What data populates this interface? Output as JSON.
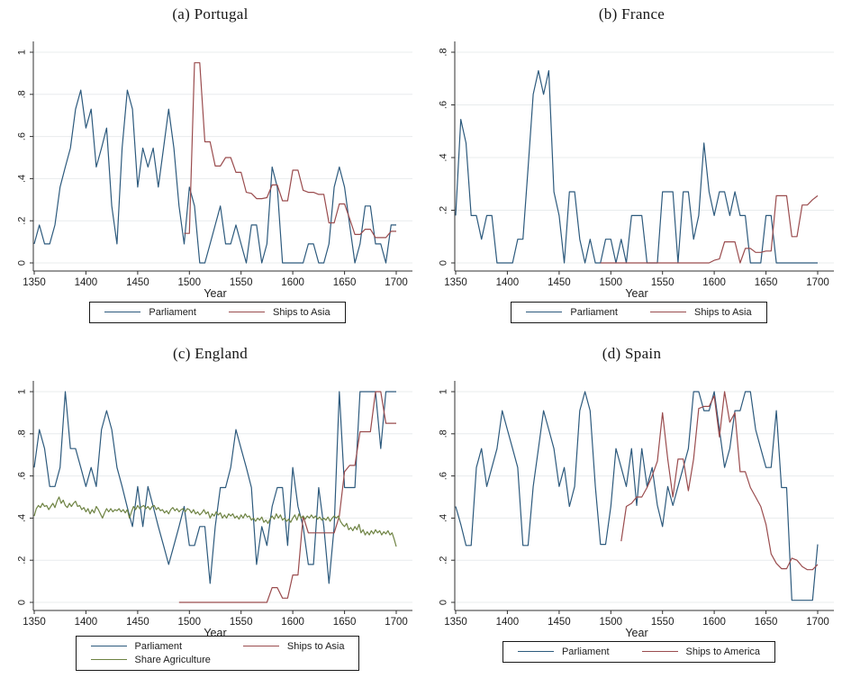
{
  "figure": {
    "background": "#ffffff",
    "panel_count": 4
  },
  "colors": {
    "parliament": "#2d5a7d",
    "ships": "#9a4c4e",
    "agriculture": "#6e8343",
    "grid": "#e8eced",
    "axis": "#303030",
    "text": "#1c1c1c",
    "legend_border": "#181818"
  },
  "chart_data": [
    {
      "type": "line",
      "id": "portugal",
      "title": "(a) Portugal",
      "xlabel": "Year",
      "xlim": [
        1350,
        1700
      ],
      "ylim": [
        0,
        1
      ],
      "x_ticks": [
        1350,
        1400,
        1450,
        1500,
        1550,
        1600,
        1650,
        1700
      ],
      "y_tick_values": [
        0,
        0.2,
        0.4,
        0.6,
        0.8,
        1
      ],
      "y_tick_labels": [
        "0",
        ".2",
        ".4",
        ".6",
        ".8",
        "1"
      ],
      "grid": "horizontal",
      "legend_position": "bottom",
      "series": [
        {
          "name": "Parliament",
          "color": "parliament",
          "x0": 1350,
          "dx": 5,
          "values": [
            0.09,
            0.18,
            0.09,
            0.09,
            0.18,
            0.36,
            0.455,
            0.545,
            0.73,
            0.82,
            0.64,
            0.73,
            0.455,
            0.545,
            0.64,
            0.27,
            0.09,
            0.545,
            0.82,
            0.73,
            0.36,
            0.545,
            0.455,
            0.545,
            0.36,
            0.545,
            0.73,
            0.545,
            0.27,
            0.09,
            0.36,
            0.27,
            0,
            0,
            0.09,
            0.18,
            0.27,
            0.09,
            0.09,
            0.18,
            0.09,
            0,
            0.18,
            0.18,
            0,
            0.09,
            0.455,
            0.36,
            0,
            0,
            0,
            0,
            0,
            0.09,
            0.09,
            0,
            0,
            0.09,
            0.36,
            0.455,
            0.36,
            0.18,
            0,
            0.09,
            0.27,
            0.27,
            0.09,
            0.09,
            0,
            0.18,
            0.18
          ]
        },
        {
          "name": "Ships to Asia",
          "color": "ships",
          "x0": 1495,
          "dx": 5,
          "values": [
            0.14,
            0.14,
            0.95,
            0.95,
            0.575,
            0.575,
            0.46,
            0.46,
            0.5,
            0.5,
            0.43,
            0.43,
            0.335,
            0.33,
            0.305,
            0.305,
            0.31,
            0.37,
            0.37,
            0.295,
            0.295,
            0.44,
            0.44,
            0.345,
            0.335,
            0.335,
            0.325,
            0.325,
            0.19,
            0.19,
            0.28,
            0.28,
            0.21,
            0.135,
            0.135,
            0.16,
            0.16,
            0.12,
            0.12,
            0.12,
            0.15,
            0.15
          ]
        }
      ]
    },
    {
      "type": "line",
      "id": "france",
      "title": "(b) France",
      "xlabel": "Year",
      "xlim": [
        1350,
        1700
      ],
      "ylim": [
        0,
        0.8
      ],
      "x_ticks": [
        1350,
        1400,
        1450,
        1500,
        1550,
        1600,
        1650,
        1700
      ],
      "y_tick_values": [
        0,
        0.2,
        0.4,
        0.6,
        0.8
      ],
      "y_tick_labels": [
        "0",
        ".2",
        ".4",
        ".6",
        ".8"
      ],
      "grid": "horizontal",
      "legend_position": "bottom",
      "series": [
        {
          "name": "Parliament",
          "color": "parliament",
          "x0": 1350,
          "dx": 5,
          "values": [
            0.18,
            0.545,
            0.455,
            0.18,
            0.18,
            0.09,
            0.18,
            0.18,
            0,
            0,
            0,
            0,
            0.09,
            0.09,
            0.36,
            0.64,
            0.73,
            0.64,
            0.73,
            0.27,
            0.18,
            0,
            0.27,
            0.27,
            0.09,
            0,
            0.09,
            0,
            0,
            0.09,
            0.09,
            0,
            0.09,
            0,
            0.18,
            0.18,
            0.18,
            0,
            0,
            0,
            0.27,
            0.27,
            0.27,
            0,
            0.27,
            0.27,
            0.09,
            0.18,
            0.455,
            0.27,
            0.18,
            0.27,
            0.27,
            0.18,
            0.27,
            0.18,
            0.18,
            0,
            0,
            0,
            0.18,
            0.18,
            0,
            0,
            0,
            0,
            0,
            0,
            0,
            0,
            0
          ]
        },
        {
          "name": "Ships to Asia",
          "color": "ships",
          "x0": 1490,
          "dx": 5,
          "values": [
            0,
            0,
            0,
            0,
            0,
            0,
            0,
            0,
            0,
            0,
            0,
            0,
            0,
            0,
            0,
            0,
            0,
            0,
            0,
            0,
            0,
            0,
            0.01,
            0.015,
            0.08,
            0.08,
            0.08,
            0,
            0.055,
            0.055,
            0.04,
            0.04,
            0.045,
            0.045,
            0.255,
            0.255,
            0.255,
            0.1,
            0.1,
            0.22,
            0.22,
            0.24,
            0.255
          ]
        }
      ]
    },
    {
      "type": "line",
      "id": "england",
      "title": "(c) England",
      "xlabel": "Year",
      "xlim": [
        1350,
        1700
      ],
      "ylim": [
        0,
        1
      ],
      "x_ticks": [
        1350,
        1400,
        1450,
        1500,
        1550,
        1600,
        1650,
        1700
      ],
      "y_tick_values": [
        0,
        0.2,
        0.4,
        0.6,
        0.8,
        1
      ],
      "y_tick_labels": [
        "0",
        ".2",
        ".4",
        ".6",
        ".8",
        "1"
      ],
      "grid": "horizontal",
      "legend_position": "bottom",
      "series": [
        {
          "name": "Parliament",
          "color": "parliament",
          "x0": 1350,
          "dx": 5,
          "values": [
            0.64,
            0.82,
            0.73,
            0.55,
            0.55,
            0.64,
            1,
            0.73,
            0.73,
            0.64,
            0.55,
            0.64,
            0.55,
            0.82,
            0.91,
            0.82,
            0.64,
            0.55,
            0.45,
            0.36,
            0.55,
            0.36,
            0.55,
            0.455,
            0.36,
            0.27,
            0.18,
            0.27,
            0.36,
            0.455,
            0.27,
            0.27,
            0.36,
            0.36,
            0.09,
            0.36,
            0.545,
            0.545,
            0.64,
            0.82,
            0.73,
            0.64,
            0.545,
            0.18,
            0.36,
            0.27,
            0.455,
            0.545,
            0.545,
            0.27,
            0.64,
            0.455,
            0.36,
            0.18,
            0.18,
            0.545,
            0.36,
            0.09,
            0.36,
            1,
            0.545,
            0.545,
            0.545,
            1,
            1,
            1,
            1,
            0.73,
            1,
            1,
            1
          ]
        },
        {
          "name": "Ships to Asia",
          "color": "ships",
          "x0": 1490,
          "dx": 5,
          "values": [
            0,
            0,
            0,
            0,
            0,
            0,
            0,
            0,
            0,
            0,
            0,
            0,
            0,
            0,
            0,
            0,
            0,
            0,
            0.07,
            0.07,
            0.02,
            0.02,
            0.13,
            0.13,
            0.41,
            0.33,
            0.33,
            0.33,
            0.33,
            0.33,
            0.33,
            0.41,
            0.62,
            0.65,
            0.65,
            0.81,
            0.81,
            0.81,
            1,
            1,
            0.85,
            0.85,
            0.85
          ]
        },
        {
          "name": "Share Agriculture",
          "color": "agriculture",
          "x0": 1350,
          "dx": 2,
          "values": [
            0.41,
            0.445,
            0.46,
            0.45,
            0.47,
            0.455,
            0.46,
            0.44,
            0.455,
            0.47,
            0.45,
            0.48,
            0.5,
            0.47,
            0.485,
            0.46,
            0.45,
            0.47,
            0.455,
            0.47,
            0.48,
            0.455,
            0.46,
            0.44,
            0.45,
            0.43,
            0.445,
            0.42,
            0.44,
            0.425,
            0.455,
            0.44,
            0.42,
            0.4,
            0.425,
            0.445,
            0.43,
            0.445,
            0.43,
            0.44,
            0.435,
            0.445,
            0.43,
            0.44,
            0.425,
            0.44,
            0.4,
            0.43,
            0.455,
            0.44,
            0.46,
            0.445,
            0.455,
            0.46,
            0.445,
            0.455,
            0.44,
            0.455,
            0.46,
            0.44,
            0.45,
            0.435,
            0.44,
            0.425,
            0.435,
            0.42,
            0.44,
            0.45,
            0.435,
            0.445,
            0.43,
            0.44,
            0.445,
            0.43,
            0.445,
            0.44,
            0.425,
            0.44,
            0.42,
            0.43,
            0.415,
            0.425,
            0.44,
            0.42,
            0.43,
            0.4,
            0.42,
            0.41,
            0.43,
            0.415,
            0.425,
            0.4,
            0.415,
            0.4,
            0.42,
            0.41,
            0.42,
            0.4,
            0.41,
            0.395,
            0.415,
            0.4,
            0.42,
            0.405,
            0.41,
            0.39,
            0.4,
            0.385,
            0.4,
            0.39,
            0.405,
            0.38,
            0.39,
            0.375,
            0.395,
            0.41,
            0.395,
            0.42,
            0.4,
            0.415,
            0.39,
            0.4,
            0.385,
            0.395,
            0.38,
            0.4,
            0.415,
            0.39,
            0.42,
            0.4,
            0.41,
            0.395,
            0.41,
            0.4,
            0.415,
            0.4,
            0.41,
            0.395,
            0.405,
            0.39,
            0.4,
            0.39,
            0.405,
            0.385,
            0.4,
            0.41,
            0.4,
            0.41,
            0.385,
            0.37,
            0.36,
            0.375,
            0.345,
            0.355,
            0.34,
            0.36,
            0.345,
            0.37,
            0.33,
            0.345,
            0.32,
            0.335,
            0.32,
            0.34,
            0.325,
            0.345,
            0.33,
            0.34,
            0.32,
            0.335,
            0.325,
            0.34,
            0.32,
            0.33,
            0.3,
            0.265
          ]
        }
      ]
    },
    {
      "type": "line",
      "id": "spain",
      "title": "(d) Spain",
      "xlabel": "Year",
      "xlim": [
        1350,
        1700
      ],
      "ylim": [
        0,
        1
      ],
      "x_ticks": [
        1350,
        1400,
        1450,
        1500,
        1550,
        1600,
        1650,
        1700
      ],
      "y_tick_values": [
        0,
        0.2,
        0.4,
        0.6,
        0.8,
        1
      ],
      "y_tick_labels": [
        "0",
        ".2",
        ".4",
        ".6",
        ".8",
        "1"
      ],
      "grid": "horizontal",
      "legend_position": "bottom",
      "series": [
        {
          "name": "Parliament",
          "color": "parliament",
          "x0": 1350,
          "dx": 5,
          "values": [
            0.455,
            0.37,
            0.27,
            0.27,
            0.64,
            0.73,
            0.55,
            0.64,
            0.73,
            0.91,
            0.82,
            0.73,
            0.64,
            0.27,
            0.27,
            0.55,
            0.73,
            0.91,
            0.82,
            0.73,
            0.55,
            0.64,
            0.455,
            0.55,
            0.91,
            1,
            0.91,
            0.55,
            0.275,
            0.275,
            0.455,
            0.73,
            0.64,
            0.55,
            0.73,
            0.46,
            0.73,
            0.55,
            0.64,
            0.46,
            0.36,
            0.55,
            0.46,
            0.55,
            0.64,
            0.73,
            1,
            1,
            0.91,
            0.91,
            1,
            0.82,
            0.64,
            0.73,
            0.91,
            0.91,
            1,
            1,
            0.82,
            0.73,
            0.64,
            0.64,
            0.91,
            0.545,
            0.545,
            0.01,
            0.01,
            0.01,
            0.01,
            0.01,
            0.275
          ]
        },
        {
          "name": "Ships to America",
          "color": "ships",
          "x0": 1510,
          "dx": 5,
          "values": [
            0.29,
            0.455,
            0.47,
            0.5,
            0.5,
            0.545,
            0.6,
            0.67,
            0.9,
            0.68,
            0.5,
            0.68,
            0.68,
            0.53,
            0.68,
            0.92,
            0.93,
            0.93,
            0.98,
            0.785,
            1,
            0.855,
            0.9,
            0.62,
            0.62,
            0.545,
            0.5,
            0.455,
            0.37,
            0.23,
            0.185,
            0.16,
            0.16,
            0.21,
            0.2,
            0.17,
            0.155,
            0.155,
            0.18
          ]
        }
      ]
    }
  ]
}
